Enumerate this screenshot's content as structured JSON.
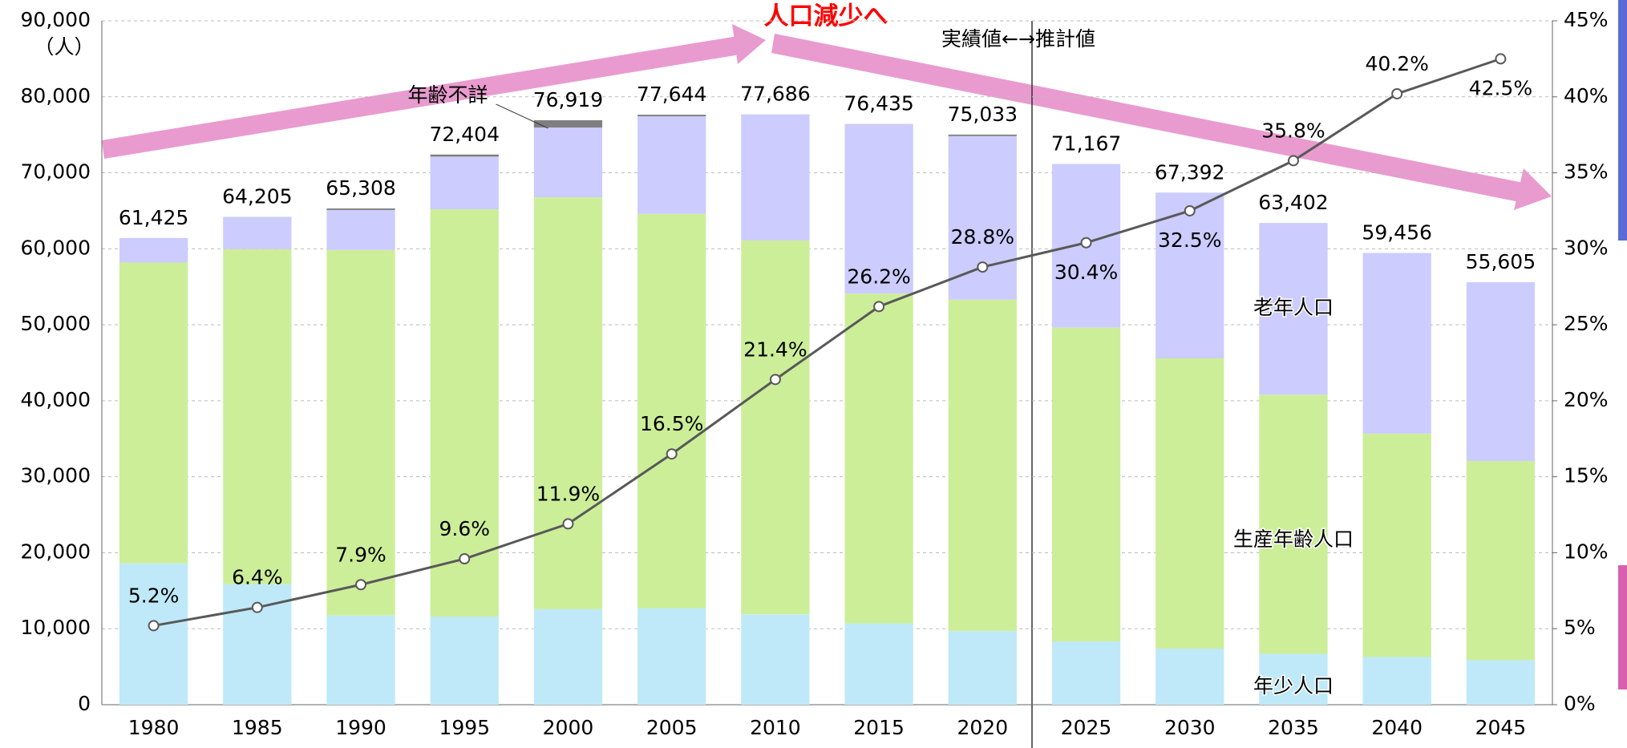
{
  "chart_data": {
    "type": "bar",
    "categories": [
      "1980",
      "1985",
      "1990",
      "1995",
      "2000",
      "2005",
      "2010",
      "2015",
      "2020",
      "2025",
      "2030",
      "2035",
      "2040",
      "2045"
    ],
    "series": [
      {
        "name": "年少人口",
        "color": "#bfe9f8",
        "values": [
          18600,
          15850,
          11750,
          11600,
          12570,
          12700,
          11900,
          10700,
          9700,
          8330,
          7380,
          6700,
          6280,
          5870
        ]
      },
      {
        "name": "生産年齢人口",
        "color": "#ccee99",
        "values": [
          39600,
          44100,
          48100,
          53600,
          54200,
          51900,
          49200,
          43400,
          43600,
          41300,
          38200,
          34100,
          29400,
          26200
        ]
      },
      {
        "name": "老年人口",
        "color": "#ccccff",
        "values": [
          3225,
          4255,
          5258,
          6934,
          9189,
          12844,
          16586,
          22335,
          21533,
          21537,
          21812,
          22602,
          23776,
          23535
        ]
      },
      {
        "name": "年齢不詳",
        "color": "#7f7f7f",
        "values": [
          null,
          null,
          200,
          270,
          960,
          200,
          null,
          null,
          200,
          null,
          null,
          null,
          null,
          null
        ]
      }
    ],
    "totals": {
      "values": [
        61425,
        64205,
        65308,
        72404,
        76919,
        77644,
        77686,
        76435,
        75033,
        71167,
        67392,
        63402,
        59456,
        55605
      ],
      "value_labels": [
        "61,425",
        "64,205",
        "65,308",
        "72,404",
        "76,919",
        "77,644",
        "77,686",
        "76,435",
        "75,033",
        "71,167",
        "67,392",
        "63,402",
        "59,456",
        "55,605"
      ]
    },
    "ratio": {
      "axis": "y2",
      "color": "#595959",
      "values": [
        5.2,
        6.4,
        7.9,
        9.6,
        11.9,
        16.5,
        21.4,
        26.2,
        28.8,
        30.4,
        32.5,
        35.8,
        40.2,
        42.5
      ],
      "value_labels": [
        "5.2%",
        "6.4%",
        "7.9%",
        "9.6%",
        "11.9%",
        "16.5%",
        "21.4%",
        "26.2%",
        "28.8%",
        "30.4%",
        "32.5%",
        "35.8%",
        "40.2%",
        "42.5%"
      ]
    },
    "y_label": "（人）",
    "annotations": [
      "人口減少へ",
      "実績値←→推計値"
    ],
    "ylim": [
      0,
      90000
    ],
    "yticks": [
      0,
      {
        "value": 10000,
        "label": "10,000"
      },
      {
        "value": 20000,
        "label": "20,000"
      },
      {
        "value": 30000,
        "label": "30,000"
      },
      {
        "value": 40000,
        "label": "40,000"
      },
      {
        "value": 50000,
        "label": "50,000"
      },
      {
        "value": 60000,
        "label": "60,000"
      },
      {
        "value": 70000,
        "label": "70,000"
      },
      {
        "value": 80000,
        "label": "80,000"
      },
      {
        "value": 90000,
        "label": "90,000"
      }
    ],
    "y2lim": [
      0,
      45
    ],
    "y2ticks": [
      {
        "value": 0,
        "label": "0%"
      },
      {
        "value": 5,
        "label": "5%"
      },
      {
        "value": 10,
        "label": "10%"
      },
      {
        "value": 15,
        "label": "15%"
      },
      {
        "value": 20,
        "label": "20%"
      },
      {
        "value": 25,
        "label": "25%"
      },
      {
        "value": 30,
        "label": "30%"
      },
      {
        "value": 35,
        "label": "35%"
      },
      {
        "value": 40,
        "label": "40%"
      },
      {
        "value": 45,
        "label": "45%"
      }
    ],
    "grid": true
  }
}
